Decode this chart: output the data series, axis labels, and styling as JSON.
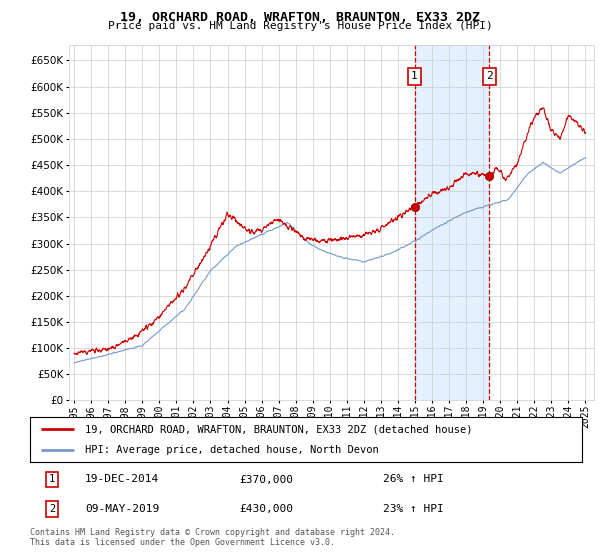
{
  "title": "19, ORCHARD ROAD, WRAFTON, BRAUNTON, EX33 2DZ",
  "subtitle": "Price paid vs. HM Land Registry's House Price Index (HPI)",
  "legend_line1": "19, ORCHARD ROAD, WRAFTON, BRAUNTON, EX33 2DZ (detached house)",
  "legend_line2": "HPI: Average price, detached house, North Devon",
  "transaction1_date": "19-DEC-2014",
  "transaction1_price": "£370,000",
  "transaction1_hpi": "26% ↑ HPI",
  "transaction2_date": "09-MAY-2019",
  "transaction2_price": "£430,000",
  "transaction2_hpi": "23% ↑ HPI",
  "footer": "Contains HM Land Registry data © Crown copyright and database right 2024.\nThis data is licensed under the Open Government Licence v3.0.",
  "ylim": [
    0,
    680000
  ],
  "yticks": [
    0,
    50000,
    100000,
    150000,
    200000,
    250000,
    300000,
    350000,
    400000,
    450000,
    500000,
    550000,
    600000,
    650000
  ],
  "background_color": "#ffffff",
  "grid_color": "#cccccc",
  "red_line_color": "#cc0000",
  "blue_line_color": "#7799cc",
  "shade_color": "#ddeeff",
  "transaction1_x": 2014.97,
  "transaction2_x": 2019.36,
  "title_fontsize": 9,
  "subtitle_fontsize": 8
}
